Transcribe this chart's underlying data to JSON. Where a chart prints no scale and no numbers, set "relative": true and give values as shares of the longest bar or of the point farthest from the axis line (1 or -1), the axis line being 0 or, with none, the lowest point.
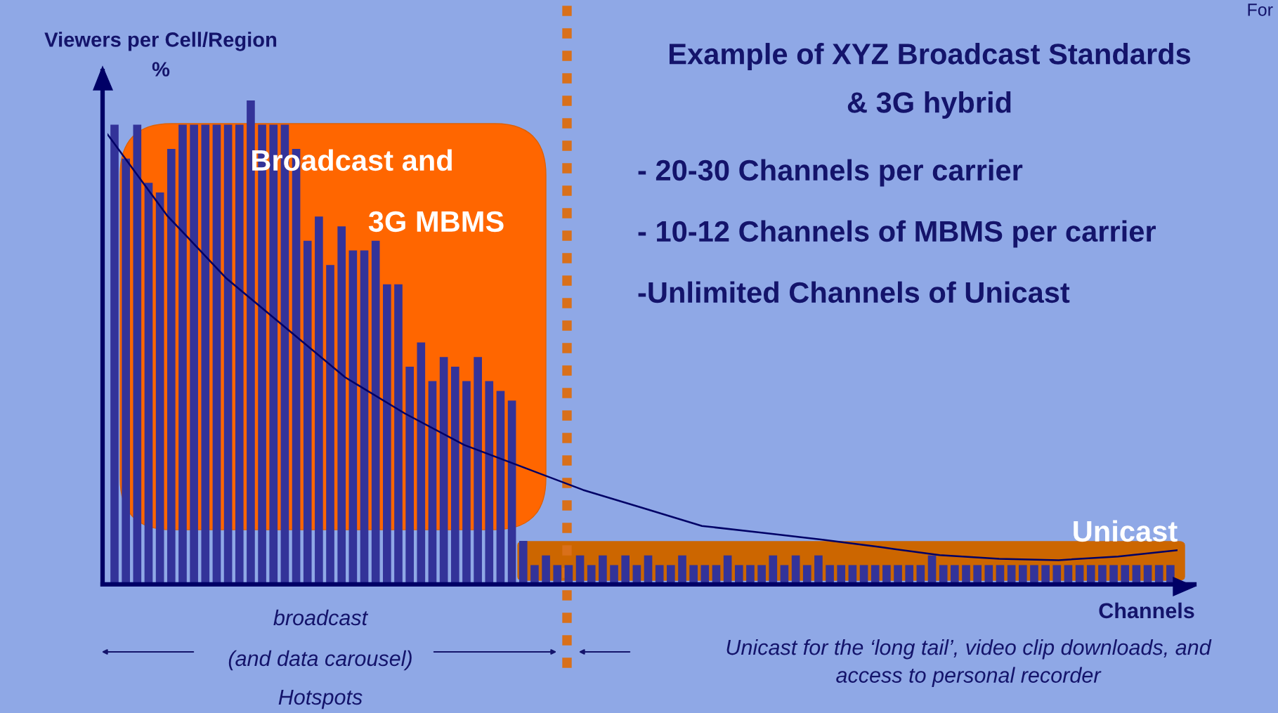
{
  "chart_data": [
    {
      "type": "bar",
      "relative": true,
      "title": "Example of XYZ Broadcast Standards\n& 3G hybrid",
      "ylabel": "Viewers per Cell/Region\n%",
      "xlabel": "Channels",
      "categories": [
        null,
        null,
        null,
        null,
        null,
        null,
        null,
        null,
        null,
        null,
        null,
        null,
        null,
        null,
        null,
        null,
        null,
        null,
        null,
        null,
        null,
        null,
        null,
        null,
        null,
        null,
        null,
        null,
        null,
        null,
        null,
        null,
        null,
        null,
        null,
        null,
        null,
        null,
        null,
        null,
        null,
        null,
        null,
        null,
        null,
        null,
        null,
        null,
        null,
        null,
        null,
        null,
        null,
        null,
        null,
        null,
        null,
        null,
        null,
        null,
        null,
        null,
        null,
        null,
        null,
        null,
        null,
        null,
        null,
        null,
        null,
        null,
        null,
        null,
        null,
        null,
        null,
        null,
        null,
        null,
        null,
        null,
        null,
        null,
        null,
        null,
        null,
        null,
        null,
        null,
        null,
        null,
        null,
        null
      ],
      "series": [
        {
          "color": "#333399",
          "values": [
            0.95,
            0.88,
            0.95,
            0.83,
            0.81,
            0.9,
            0.95,
            0.95,
            0.95,
            0.95,
            0.95,
            0.95,
            1,
            0.95,
            0.95,
            0.95,
            0.9,
            0.71,
            0.76,
            0.66,
            0.74,
            0.69,
            0.69,
            0.71,
            0.62,
            0.62,
            0.45,
            0.5,
            0.42,
            0.47,
            0.45,
            0.42,
            0.47,
            0.42,
            0.4,
            0.38,
            0.09,
            0.04,
            0.06,
            0.04,
            0.04,
            0.06,
            0.04,
            0.06,
            0.04,
            0.06,
            0.04,
            0.06,
            0.04,
            0.04,
            0.06,
            0.04,
            0.04,
            0.04,
            0.06,
            0.04,
            0.04,
            0.04,
            0.06,
            0.04,
            0.06,
            0.04,
            0.06,
            0.04,
            0.04,
            0.04,
            0.04,
            0.04,
            0.04,
            0.04,
            0.04,
            0.04,
            0.06,
            0.04,
            0.04,
            0.04,
            0.04,
            0.04,
            0.04,
            0.04,
            0.04,
            0.04,
            0.04,
            0.04,
            0.04,
            0.04,
            0.04,
            0.04,
            0.04,
            0.04,
            0.04,
            0.04,
            0.04,
            0.04
          ]
        }
      ],
      "annotations": [
        "Broadcast and",
        "3G MBMS",
        "Unicast",
        "- 20-30 Channels per carrier",
        "- 10-12 Channels of MBMS per carrier",
        "-Unlimited Channels of Unicast",
        "broadcast",
        "(and data carousel)",
        "Hotspots",
        "Unicast for the ‘long tail’, video clip downloads, and\naccess to personal recorder",
        "For"
      ]
    },
    {
      "type": "line",
      "relative": true,
      "categories": [
        null,
        null,
        null,
        null,
        null,
        null,
        null,
        null,
        null,
        null,
        null,
        null,
        null,
        null,
        null,
        null,
        null,
        null,
        null
      ],
      "series": [
        {
          "color": "#000066",
          "values": [
            1,
            0.82,
            0.68,
            0.57,
            0.46,
            0.38,
            0.31,
            0.26,
            0.21,
            0.17,
            0.13,
            0.115,
            0.1,
            0.083,
            0.065,
            0.057,
            0.054,
            0.062,
            0.076
          ]
        }
      ]
    }
  ]
}
